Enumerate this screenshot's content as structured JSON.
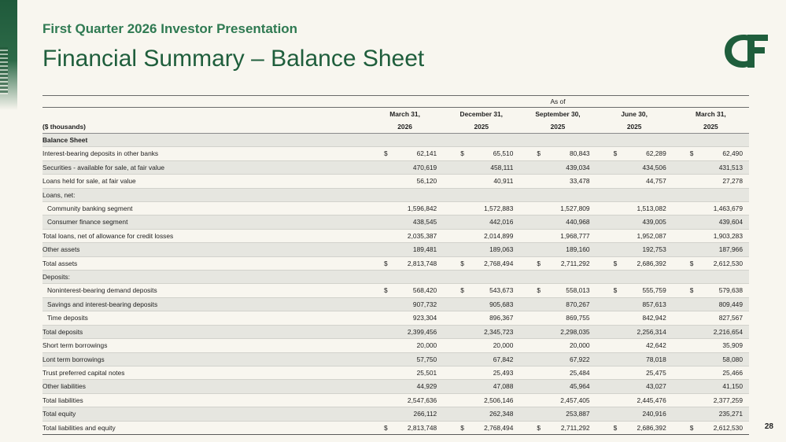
{
  "header": {
    "subtitle": "First Quarter 2026 Investor Presentation",
    "title": "Financial Summary – Balance Sheet"
  },
  "logo": {
    "text": "C&F",
    "color": "#1f5e3c"
  },
  "page_number": "28",
  "colors": {
    "accent": "#1f5e3c",
    "subtitle": "#2f7a52",
    "row_shade": "#e6e6e0"
  },
  "table": {
    "as_of": "As of",
    "units_label": "($ thousands)",
    "columns": [
      {
        "month": "March 31,",
        "year": "2026"
      },
      {
        "month": "December 31,",
        "year": "2025"
      },
      {
        "month": "September 30,",
        "year": "2025"
      },
      {
        "month": "June 30,",
        "year": "2025"
      },
      {
        "month": "March 31,",
        "year": "2025"
      }
    ],
    "rows": [
      {
        "label": "Balance Sheet",
        "bold": true,
        "shade": true,
        "values": [
          "",
          "",
          "",
          "",
          ""
        ]
      },
      {
        "label": "Interest-bearing deposits in other banks",
        "currency": true,
        "values": [
          "62,141",
          "65,510",
          "80,843",
          "62,289",
          "62,490"
        ]
      },
      {
        "label": "Securities - available for sale, at fair value",
        "shade": true,
        "values": [
          "470,619",
          "458,111",
          "439,034",
          "434,506",
          "431,513"
        ]
      },
      {
        "label": "Loans held for sale, at fair value",
        "values": [
          "56,120",
          "40,911",
          "33,478",
          "44,757",
          "27,278"
        ]
      },
      {
        "label": "Loans, net:",
        "shade": true,
        "values": [
          "",
          "",
          "",
          "",
          ""
        ]
      },
      {
        "label": "Community banking segment",
        "indent": true,
        "values": [
          "1,596,842",
          "1,572,883",
          "1,527,809",
          "1,513,082",
          "1,463,679"
        ]
      },
      {
        "label": "Consumer finance segment",
        "indent": true,
        "shade": true,
        "values": [
          "438,545",
          "442,016",
          "440,968",
          "439,005",
          "439,604"
        ]
      },
      {
        "label": "Total loans, net of allowance for credit losses",
        "values": [
          "2,035,387",
          "2,014,899",
          "1,968,777",
          "1,952,087",
          "1,903,283"
        ]
      },
      {
        "label": "Other assets",
        "shade": true,
        "values": [
          "189,481",
          "189,063",
          "189,160",
          "192,753",
          "187,966"
        ]
      },
      {
        "label": "Total assets",
        "currency": true,
        "values": [
          "2,813,748",
          "2,768,494",
          "2,711,292",
          "2,686,392",
          "2,612,530"
        ]
      },
      {
        "label": "Deposits:",
        "shade": true,
        "values": [
          "",
          "",
          "",
          "",
          ""
        ]
      },
      {
        "label": "Noninterest-bearing demand deposits",
        "indent": true,
        "currency": true,
        "values": [
          "568,420",
          "543,673",
          "558,013",
          "555,759",
          "579,638"
        ]
      },
      {
        "label": "Savings and interest-bearing deposits",
        "indent": true,
        "shade": true,
        "values": [
          "907,732",
          "905,683",
          "870,267",
          "857,613",
          "809,449"
        ]
      },
      {
        "label": "Time deposits",
        "indent": true,
        "values": [
          "923,304",
          "896,367",
          "869,755",
          "842,942",
          "827,567"
        ]
      },
      {
        "label": "Total deposits",
        "shade": true,
        "values": [
          "2,399,456",
          "2,345,723",
          "2,298,035",
          "2,256,314",
          "2,216,654"
        ]
      },
      {
        "label": "Short term borrowings",
        "values": [
          "20,000",
          "20,000",
          "20,000",
          "42,642",
          "35,909"
        ]
      },
      {
        "label": "Lont term borrowings",
        "shade": true,
        "values": [
          "57,750",
          "67,842",
          "67,922",
          "78,018",
          "58,080"
        ]
      },
      {
        "label": "Trust preferred capital notes",
        "values": [
          "25,501",
          "25,493",
          "25,484",
          "25,475",
          "25,466"
        ]
      },
      {
        "label": "Other liabilities",
        "shade": true,
        "values": [
          "44,929",
          "47,088",
          "45,964",
          "43,027",
          "41,150"
        ]
      },
      {
        "label": "Total liabilities",
        "values": [
          "2,547,636",
          "2,506,146",
          "2,457,405",
          "2,445,476",
          "2,377,259"
        ]
      },
      {
        "label": "Total equity",
        "shade": true,
        "values": [
          "266,112",
          "262,348",
          "253,887",
          "240,916",
          "235,271"
        ]
      },
      {
        "label": "Total liabilities and equity",
        "currency": true,
        "last": true,
        "values": [
          "2,813,748",
          "2,768,494",
          "2,711,292",
          "2,686,392",
          "2,612,530"
        ]
      }
    ],
    "currency_symbol": "$"
  }
}
